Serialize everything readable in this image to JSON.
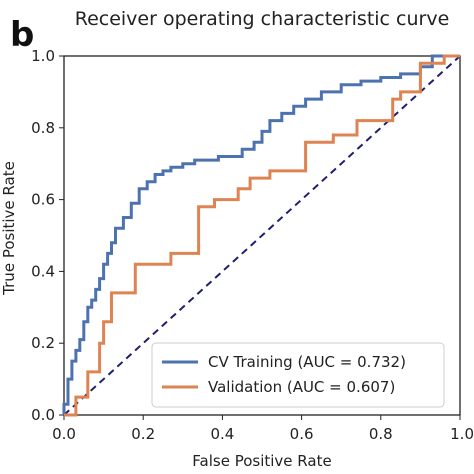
{
  "panel_label": "b",
  "chart_data": {
    "type": "line",
    "title": "Receiver operating characteristic curve",
    "xlabel": "False Positive Rate",
    "ylabel": "True Positive Rate",
    "xlim": [
      0,
      1
    ],
    "ylim": [
      0,
      1
    ],
    "xticks": [
      "0.0",
      "0.2",
      "0.4",
      "0.6",
      "0.8",
      "1.0"
    ],
    "yticks": [
      "0.0",
      "0.2",
      "0.4",
      "0.6",
      "0.8",
      "1.0"
    ],
    "grid": false,
    "legend_position": "lower-right",
    "diagonal_reference": {
      "color": "#1f1f6e",
      "style": "dashed"
    },
    "series": [
      {
        "name": "CV Training (AUC = 0.732)",
        "color": "#4c72b0",
        "x": [
          0.0,
          0.0,
          0.01,
          0.01,
          0.02,
          0.02,
          0.03,
          0.03,
          0.04,
          0.04,
          0.05,
          0.05,
          0.06,
          0.06,
          0.07,
          0.07,
          0.08,
          0.08,
          0.09,
          0.09,
          0.1,
          0.1,
          0.11,
          0.11,
          0.12,
          0.12,
          0.13,
          0.13,
          0.15,
          0.15,
          0.17,
          0.17,
          0.19,
          0.19,
          0.21,
          0.21,
          0.23,
          0.23,
          0.25,
          0.25,
          0.27,
          0.27,
          0.3,
          0.3,
          0.33,
          0.33,
          0.36,
          0.36,
          0.39,
          0.39,
          0.42,
          0.42,
          0.45,
          0.45,
          0.48,
          0.48,
          0.5,
          0.5,
          0.52,
          0.52,
          0.55,
          0.55,
          0.58,
          0.58,
          0.61,
          0.61,
          0.65,
          0.65,
          0.7,
          0.7,
          0.75,
          0.75,
          0.8,
          0.8,
          0.85,
          0.85,
          0.9,
          0.9,
          0.93,
          0.93,
          0.97,
          0.97,
          1.0
        ],
        "y": [
          0.0,
          0.03,
          0.03,
          0.1,
          0.1,
          0.15,
          0.15,
          0.18,
          0.18,
          0.21,
          0.21,
          0.26,
          0.26,
          0.3,
          0.3,
          0.32,
          0.32,
          0.35,
          0.35,
          0.38,
          0.38,
          0.42,
          0.42,
          0.45,
          0.45,
          0.48,
          0.48,
          0.52,
          0.52,
          0.55,
          0.55,
          0.59,
          0.59,
          0.63,
          0.63,
          0.65,
          0.65,
          0.67,
          0.67,
          0.68,
          0.68,
          0.69,
          0.69,
          0.7,
          0.7,
          0.71,
          0.71,
          0.71,
          0.71,
          0.72,
          0.72,
          0.72,
          0.72,
          0.74,
          0.74,
          0.76,
          0.76,
          0.79,
          0.79,
          0.82,
          0.82,
          0.84,
          0.84,
          0.86,
          0.86,
          0.88,
          0.88,
          0.9,
          0.9,
          0.92,
          0.92,
          0.93,
          0.93,
          0.94,
          0.94,
          0.95,
          0.95,
          0.97,
          0.97,
          1.0,
          1.0,
          1.0,
          1.0
        ]
      },
      {
        "name": "Validation (AUC = 0.607)",
        "color": "#dd8452",
        "x": [
          0.0,
          0.03,
          0.03,
          0.06,
          0.06,
          0.09,
          0.09,
          0.1,
          0.1,
          0.12,
          0.12,
          0.14,
          0.14,
          0.18,
          0.18,
          0.27,
          0.27,
          0.34,
          0.34,
          0.38,
          0.38,
          0.44,
          0.44,
          0.47,
          0.47,
          0.52,
          0.52,
          0.61,
          0.61,
          0.68,
          0.68,
          0.74,
          0.74,
          0.83,
          0.83,
          0.85,
          0.85,
          0.9,
          0.9,
          0.96,
          0.96,
          1.0
        ],
        "y": [
          0.0,
          0.0,
          0.05,
          0.05,
          0.12,
          0.12,
          0.2,
          0.2,
          0.26,
          0.26,
          0.34,
          0.34,
          0.34,
          0.34,
          0.42,
          0.42,
          0.45,
          0.45,
          0.58,
          0.58,
          0.6,
          0.6,
          0.63,
          0.63,
          0.66,
          0.66,
          0.68,
          0.68,
          0.76,
          0.76,
          0.78,
          0.78,
          0.82,
          0.82,
          0.88,
          0.88,
          0.9,
          0.9,
          0.98,
          0.98,
          1.0,
          1.0
        ]
      }
    ]
  }
}
